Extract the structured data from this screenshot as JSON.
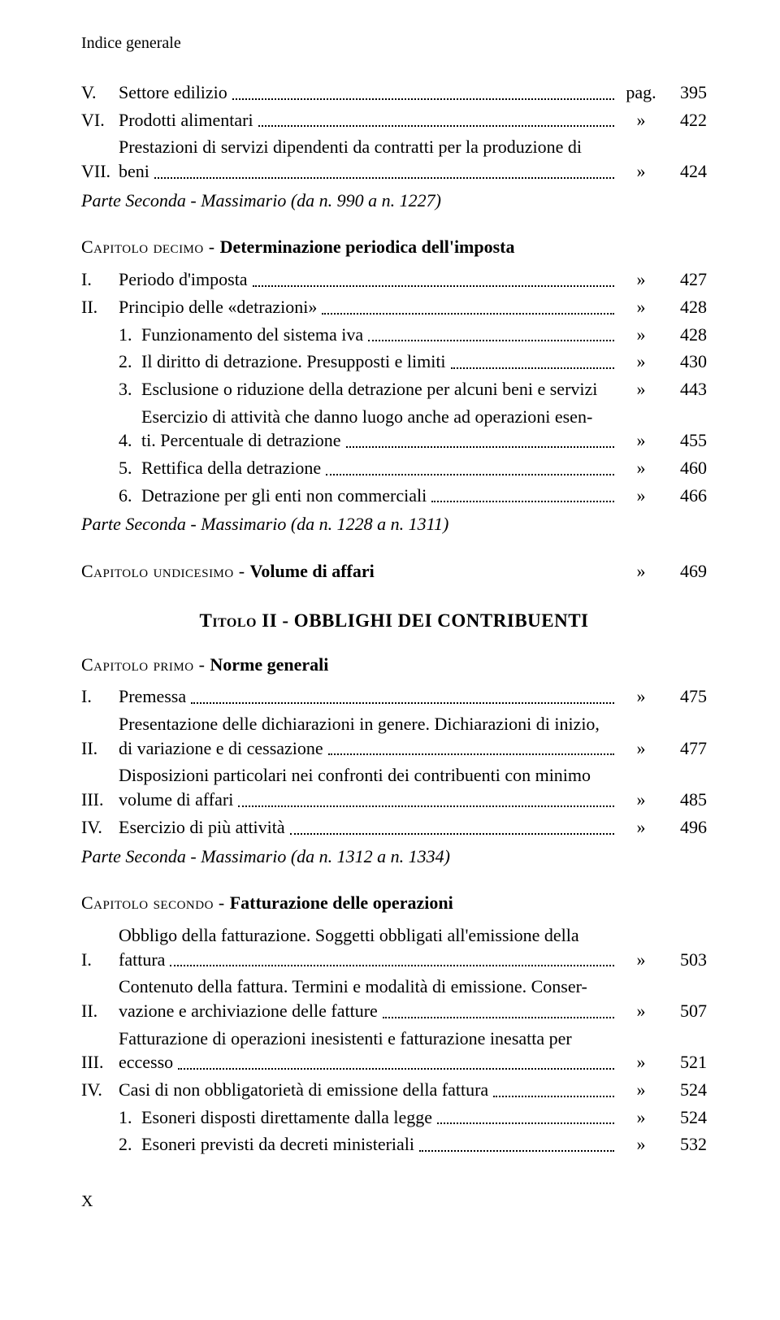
{
  "running_head": "Indice generale",
  "pag_word": "pag.",
  "raquo": "»",
  "items_top": [
    {
      "label": "V.",
      "text": "Settore edilizio",
      "sym": "pag.",
      "page": "395"
    },
    {
      "label": "VI.",
      "text": "Prodotti alimentari",
      "sym": "»",
      "page": "422"
    }
  ],
  "item_vii": {
    "label": "VII.",
    "line1": "Prestazioni di servizi dipendenti da contratti per la produzione di",
    "line2": "beni",
    "sym": "»",
    "page": "424"
  },
  "parte_990": "Parte Seconda - Massimario (da n. 990 a n. 1227)",
  "cap10_pre": "Capitolo decimo - ",
  "cap10_title": "Determinazione periodica dell'imposta",
  "cap10_items": [
    {
      "label": "I.",
      "text": "Periodo d'imposta",
      "page": "427"
    },
    {
      "label": "II.",
      "text": "Principio delle «detrazioni»",
      "page": "428"
    }
  ],
  "cap10_sub": [
    {
      "num": "1.",
      "text": "Funzionamento del sistema iva",
      "page": "428"
    },
    {
      "num": "2.",
      "text": "Il diritto di detrazione. Presupposti e limiti",
      "page": "430"
    },
    {
      "num": "3.",
      "text": "Esclusione o riduzione della detrazione per alcuni beni e servizi",
      "page": "443"
    }
  ],
  "cap10_sub4": {
    "num": "4.",
    "line1": "Esercizio di attività che danno luogo anche ad operazioni esen-",
    "line2": "ti. Percentuale di detrazione",
    "page": "455"
  },
  "cap10_sub_tail": [
    {
      "num": "5.",
      "text": "Rettifica della detrazione",
      "page": "460"
    },
    {
      "num": "6.",
      "text": "Detrazione per gli enti non commerciali",
      "page": "466"
    }
  ],
  "parte_1228": "Parte Seconda - Massimario (da n. 1228 a n. 1311)",
  "cap11_pre": "Capitolo undicesimo - ",
  "cap11_title": "Volume di affari",
  "cap11_page": "469",
  "titolo2_sc": "Titolo",
  "titolo2_rest": " II - OBBLIGHI DEI CONTRIBUENTI",
  "cap_primo_pre": "Capitolo primo - ",
  "cap_primo_title": "Norme generali",
  "cp_items": [
    {
      "label": "I.",
      "text": "Premessa",
      "page": "475"
    }
  ],
  "cp_item_ii": {
    "label": "II.",
    "line1": "Presentazione delle dichiarazioni in genere. Dichiarazioni di inizio,",
    "line2": "di variazione e di cessazione",
    "page": "477"
  },
  "cp_item_iii": {
    "label": "III.",
    "line1": "Disposizioni particolari nei confronti dei contribuenti con minimo",
    "line2": "volume di affari",
    "page": "485"
  },
  "cp_item_iv": {
    "label": "IV.",
    "text": "Esercizio di più attività",
    "page": "496"
  },
  "parte_1312": "Parte Seconda - Massimario (da n. 1312 a n. 1334)",
  "cap_sec_pre": "Capitolo secondo - ",
  "cap_sec_title": "Fatturazione delle operazioni",
  "cs_item_i": {
    "label": "I.",
    "line1": "Obbligo della fatturazione. Soggetti obbligati all'emissione della",
    "line2": "fattura",
    "page": "503"
  },
  "cs_item_ii": {
    "label": "II.",
    "line1": "Contenuto della fattura. Termini e modalità di emissione. Conser-",
    "line2": "vazione e archiviazione delle fatture",
    "page": "507"
  },
  "cs_item_iii": {
    "label": "III.",
    "line1": "Fatturazione di operazioni inesistenti e fatturazione inesatta per",
    "line2": "eccesso",
    "page": "521"
  },
  "cs_item_iv": {
    "label": "IV.",
    "text": "Casi di non obbligatorietà di emissione della fattura",
    "page": "524"
  },
  "cs_sub": [
    {
      "num": "1.",
      "text": "Esoneri disposti direttamente dalla legge",
      "page": "524"
    },
    {
      "num": "2.",
      "text": "Esoneri previsti da decreti ministeriali",
      "page": "532"
    }
  ],
  "footer": "X"
}
